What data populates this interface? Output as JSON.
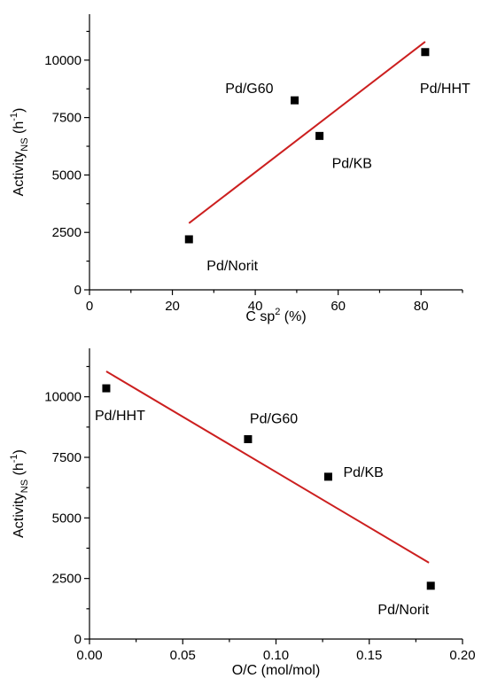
{
  "chart_data": [
    {
      "type": "scatter",
      "title": "",
      "xlabel": {
        "base": "C sp",
        "sup": "2",
        "suffix": " (%)"
      },
      "ylabel": {
        "base": "Activity",
        "sub": "NS",
        "suffix": " (h",
        "sup": "-1",
        "close": ")"
      },
      "xlim": [
        0,
        90
      ],
      "ylim": [
        0,
        12000
      ],
      "xticks": [
        0,
        20,
        40,
        60,
        80
      ],
      "xtick_labels": [
        "0",
        "20",
        "40",
        "60",
        "80"
      ],
      "yticks": [
        0,
        2500,
        5000,
        7500,
        10000
      ],
      "ytick_labels": [
        "0",
        "2500",
        "5000",
        "7500",
        "10000"
      ],
      "grid": false,
      "series": [
        {
          "kind": "points",
          "color": "#000000",
          "points": [
            {
              "x": 24,
              "y": 2200,
              "label": "Pd/Norit"
            },
            {
              "x": 49.5,
              "y": 8250,
              "label": "Pd/G60"
            },
            {
              "x": 55.5,
              "y": 6700,
              "label": "Pd/KB"
            },
            {
              "x": 81,
              "y": 10350,
              "label": "Pd/HHT"
            }
          ]
        },
        {
          "kind": "fit-line",
          "color": "#cc1f1f",
          "x": [
            24,
            81
          ],
          "y": [
            2900,
            10800
          ]
        }
      ]
    },
    {
      "type": "scatter",
      "title": "",
      "xlabel": {
        "base": "O/C (mol/mol)"
      },
      "ylabel": {
        "base": "Activity",
        "sub": "NS",
        "suffix": " (h",
        "sup": "-1",
        "close": ")"
      },
      "xlim": [
        0,
        0.2
      ],
      "ylim": [
        0,
        12000
      ],
      "xticks": [
        0,
        0.05,
        0.1,
        0.15,
        0.2
      ],
      "xtick_labels": [
        "0.00",
        "0.05",
        "0.10",
        "0.15",
        "0.20"
      ],
      "yticks": [
        0,
        2500,
        5000,
        7500,
        10000
      ],
      "ytick_labels": [
        "0",
        "2500",
        "5000",
        "7500",
        "10000"
      ],
      "grid": false,
      "series": [
        {
          "kind": "points",
          "color": "#000000",
          "points": [
            {
              "x": 0.009,
              "y": 10350,
              "label": "Pd/HHT"
            },
            {
              "x": 0.085,
              "y": 8250,
              "label": "Pd/G60"
            },
            {
              "x": 0.128,
              "y": 6700,
              "label": "Pd/KB"
            },
            {
              "x": 0.183,
              "y": 2200,
              "label": "Pd/Norit"
            }
          ]
        },
        {
          "kind": "fit-line",
          "color": "#cc1f1f",
          "x": [
            0.009,
            0.182
          ],
          "y": [
            11050,
            3150
          ]
        }
      ]
    }
  ]
}
